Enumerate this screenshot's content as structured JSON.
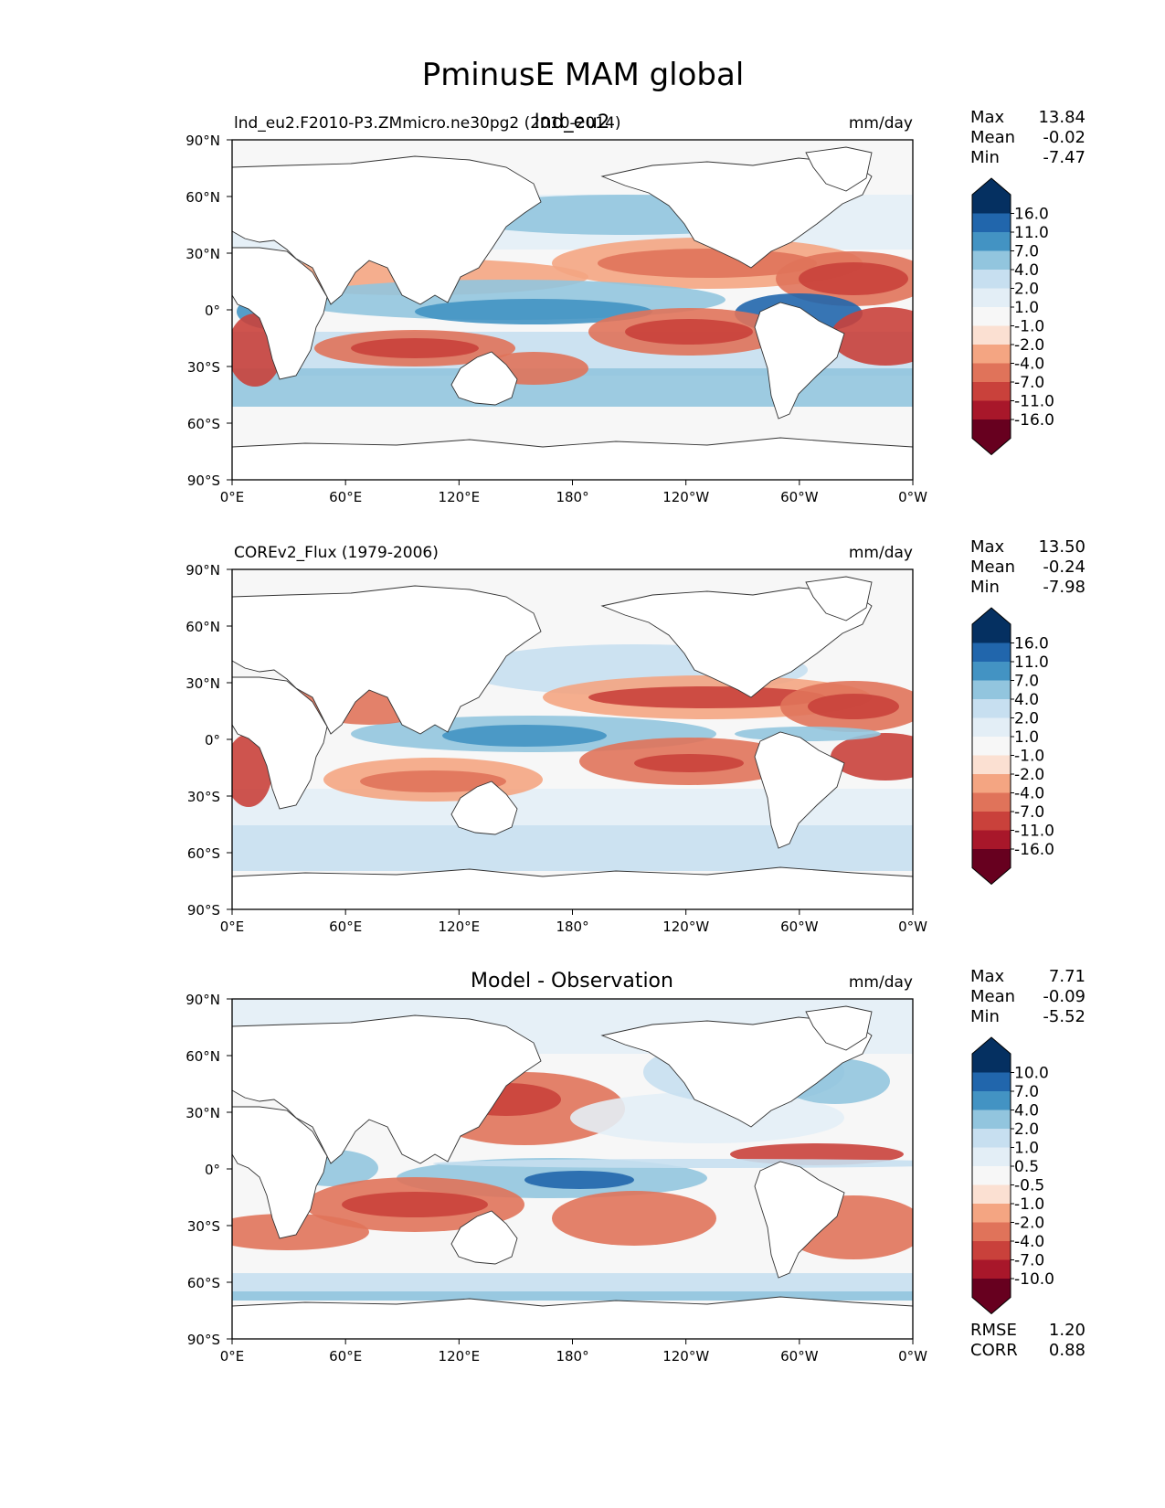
{
  "title": "PminusE MAM global",
  "panels": [
    {
      "left_title": "lnd_eu2.F2010-P3.ZMmicro.ne30pg2 (2010-2014)",
      "center_title": "lnd_eu2",
      "units": "mm/day",
      "stats": {
        "max_label": "Max",
        "max": "13.84",
        "mean_label": "Mean",
        "mean": "-0.02",
        "min_label": "Min",
        "min": "-7.47"
      },
      "colorbar": [
        "16.0",
        "11.0",
        "7.0",
        "4.0",
        "2.0",
        "1.0",
        "-1.0",
        "-2.0",
        "-4.0",
        "-7.0",
        "-11.0",
        "-16.0"
      ]
    },
    {
      "left_title": "COREv2_Flux (1979-2006)",
      "center_title": "",
      "units": "mm/day",
      "stats": {
        "max_label": "Max",
        "max": "13.50",
        "mean_label": "Mean",
        "mean": "-0.24",
        "min_label": "Min",
        "min": "-7.98"
      },
      "colorbar": [
        "16.0",
        "11.0",
        "7.0",
        "4.0",
        "2.0",
        "1.0",
        "-1.0",
        "-2.0",
        "-4.0",
        "-7.0",
        "-11.0",
        "-16.0"
      ]
    },
    {
      "left_title": "",
      "center_title": "Model - Observation",
      "units": "mm/day",
      "stats": {
        "max_label": "Max",
        "max": "7.71",
        "mean_label": "Mean",
        "mean": "-0.09",
        "min_label": "Min",
        "min": "-5.52"
      },
      "colorbar": [
        "10.0",
        "7.0",
        "4.0",
        "2.0",
        "1.0",
        "0.5",
        "-0.5",
        "-1.0",
        "-2.0",
        "-4.0",
        "-7.0",
        "-10.0"
      ],
      "metrics": {
        "rmse_label": "RMSE",
        "rmse": "1.20",
        "corr_label": "CORR",
        "corr": "0.88"
      }
    }
  ],
  "lat_ticks": [
    "90°N",
    "60°N",
    "30°N",
    "0°",
    "30°S",
    "60°S",
    "90°S"
  ],
  "lon_ticks": [
    "0°E",
    "60°E",
    "120°E",
    "180°",
    "120°W",
    "60°W",
    "0°W"
  ],
  "colors": {
    "blues": [
      "#053061",
      "#2166ac",
      "#4393c3",
      "#92c5de",
      "#c7dff0",
      "#e3eef6"
    ],
    "neutral": "#f7f7f7",
    "reds": [
      "#fbe0d2",
      "#f4a582",
      "#e0735a",
      "#c9413b",
      "#a8172a",
      "#67001f"
    ],
    "land": "#ffffff",
    "coast": "#333333"
  }
}
